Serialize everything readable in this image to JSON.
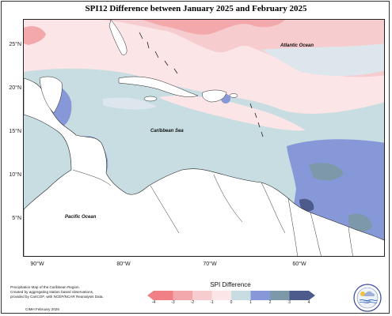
{
  "title": "SPI12 Difference between January 2025 and February 2025",
  "map": {
    "lat_labels": [
      "25°N",
      "20°N",
      "15°N",
      "10°N",
      "5°N"
    ],
    "lon_labels": [
      "90°W",
      "80°W",
      "70°W",
      "60°W"
    ],
    "places": {
      "atlantic": "Atlantic Ocean",
      "caribbean": "Caribbean Sea",
      "pacific": "Pacific Ocean"
    }
  },
  "legend": {
    "title": "SPI Difference",
    "ticks": [
      "-4",
      "-3",
      "-2",
      "-1",
      "0",
      "1",
      "2",
      "3",
      "4"
    ],
    "colors": [
      "#f07f86",
      "#f3a8ac",
      "#f7ccce",
      "#fce5e6",
      "#dde6ec",
      "#c7dde2",
      "#8798d8",
      "#7d98a9",
      "#4c5a8c"
    ]
  },
  "notes": {
    "line1": "Precipitation Map of the Caribbean Region.",
    "line2": "Created by aggregating station based observations,",
    "line3": "provided by CariCOF, with NCEP/NCAR Reanalysis Data.",
    "footer": "CIMH February 2025"
  },
  "logo": {
    "text": "CIMH"
  }
}
